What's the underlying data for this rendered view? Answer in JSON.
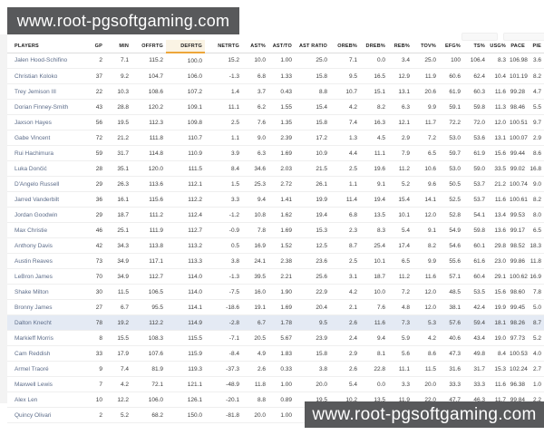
{
  "watermark": {
    "text": "www.root-pgsoftgaming.com"
  },
  "colors": {
    "banner_bg": "#58595b",
    "banner_text": "#ffffff",
    "sorted_header_bg": "#faf3e4",
    "sorted_header_underline": "#eda63a",
    "highlighted_row_bg": "#e4eaf4",
    "player_link": "#5d6d8a"
  },
  "table": {
    "columns": [
      "PLAYERS",
      "GP",
      "MIN",
      "OFFRTG",
      "DEFRTG",
      "NETRTG",
      "AST%",
      "AST/TO",
      "AST RATIO",
      "OREB%",
      "DREB%",
      "REB%",
      "TOV%",
      "EFG%",
      "TS%",
      "USG%",
      "PACE",
      "PIE"
    ],
    "sorted_column": "DEFRTG",
    "sorted_column_index": 4,
    "highlighted_player": "Dalton Knecht",
    "highlighted_row_index": 17,
    "rows": [
      {
        "player": "Jalen Hood-Schifino",
        "values": [
          "2",
          "7.1",
          "115.2",
          "100.0",
          "15.2",
          "10.0",
          "1.00",
          "25.0",
          "7.1",
          "0.0",
          "3.4",
          "25.0",
          "100",
          "106.4",
          "8.3",
          "106.98",
          "3.6"
        ]
      },
      {
        "player": "Christian Koloko",
        "values": [
          "37",
          "9.2",
          "104.7",
          "106.0",
          "-1.3",
          "6.8",
          "1.33",
          "15.8",
          "9.5",
          "16.5",
          "12.9",
          "11.9",
          "60.6",
          "62.4",
          "10.4",
          "101.19",
          "8.2"
        ]
      },
      {
        "player": "Trey Jemison III",
        "values": [
          "22",
          "10.3",
          "108.6",
          "107.2",
          "1.4",
          "3.7",
          "0.43",
          "8.8",
          "10.7",
          "15.1",
          "13.1",
          "20.6",
          "61.9",
          "60.3",
          "11.6",
          "99.28",
          "4.7"
        ]
      },
      {
        "player": "Dorian Finney-Smith",
        "values": [
          "43",
          "28.8",
          "120.2",
          "109.1",
          "11.1",
          "6.2",
          "1.55",
          "15.4",
          "4.2",
          "8.2",
          "6.3",
          "9.9",
          "59.1",
          "59.8",
          "11.3",
          "98.46",
          "5.5"
        ]
      },
      {
        "player": "Jaxson Hayes",
        "values": [
          "56",
          "19.5",
          "112.3",
          "109.8",
          "2.5",
          "7.6",
          "1.35",
          "15.8",
          "7.4",
          "16.3",
          "12.1",
          "11.7",
          "72.2",
          "72.0",
          "12.0",
          "100.51",
          "9.7"
        ]
      },
      {
        "player": "Gabe Vincent",
        "values": [
          "72",
          "21.2",
          "111.8",
          "110.7",
          "1.1",
          "9.0",
          "2.39",
          "17.2",
          "1.3",
          "4.5",
          "2.9",
          "7.2",
          "53.0",
          "53.6",
          "13.1",
          "100.07",
          "2.9"
        ]
      },
      {
        "player": "Rui Hachimura",
        "values": [
          "59",
          "31.7",
          "114.8",
          "110.9",
          "3.9",
          "6.3",
          "1.69",
          "10.9",
          "4.4",
          "11.1",
          "7.9",
          "6.5",
          "59.7",
          "61.9",
          "15.6",
          "99.44",
          "8.6"
        ]
      },
      {
        "player": "Luka Dončić",
        "values": [
          "28",
          "35.1",
          "120.0",
          "111.5",
          "8.4",
          "34.6",
          "2.03",
          "21.5",
          "2.5",
          "19.6",
          "11.2",
          "10.6",
          "53.0",
          "59.0",
          "33.5",
          "99.02",
          "16.8"
        ]
      },
      {
        "player": "D'Angelo Russell",
        "values": [
          "29",
          "26.3",
          "113.6",
          "112.1",
          "1.5",
          "25.3",
          "2.72",
          "26.1",
          "1.1",
          "9.1",
          "5.2",
          "9.6",
          "50.5",
          "53.7",
          "21.2",
          "100.74",
          "9.0"
        ]
      },
      {
        "player": "Jarred Vanderbilt",
        "values": [
          "36",
          "16.1",
          "115.6",
          "112.2",
          "3.3",
          "9.4",
          "1.41",
          "19.9",
          "11.4",
          "19.4",
          "15.4",
          "14.1",
          "52.5",
          "53.7",
          "11.6",
          "100.61",
          "8.2"
        ]
      },
      {
        "player": "Jordan Goodwin",
        "values": [
          "29",
          "18.7",
          "111.2",
          "112.4",
          "-1.2",
          "10.8",
          "1.62",
          "19.4",
          "6.8",
          "13.5",
          "10.1",
          "12.0",
          "52.8",
          "54.1",
          "13.4",
          "99.53",
          "8.0"
        ]
      },
      {
        "player": "Max Christie",
        "values": [
          "46",
          "25.1",
          "111.9",
          "112.7",
          "-0.9",
          "7.8",
          "1.69",
          "15.3",
          "2.3",
          "8.3",
          "5.4",
          "9.1",
          "54.9",
          "59.8",
          "13.6",
          "99.17",
          "6.5"
        ]
      },
      {
        "player": "Anthony Davis",
        "values": [
          "42",
          "34.3",
          "113.8",
          "113.2",
          "0.5",
          "16.9",
          "1.52",
          "12.5",
          "8.7",
          "25.4",
          "17.4",
          "8.2",
          "54.6",
          "60.1",
          "29.8",
          "98.52",
          "18.3"
        ]
      },
      {
        "player": "Austin Reaves",
        "values": [
          "73",
          "34.9",
          "117.1",
          "113.3",
          "3.8",
          "24.1",
          "2.38",
          "23.6",
          "2.5",
          "10.1",
          "6.5",
          "9.9",
          "55.6",
          "61.6",
          "23.0",
          "99.86",
          "11.8"
        ]
      },
      {
        "player": "LeBron James",
        "values": [
          "70",
          "34.9",
          "112.7",
          "114.0",
          "-1.3",
          "39.5",
          "2.21",
          "25.6",
          "3.1",
          "18.7",
          "11.2",
          "11.6",
          "57.1",
          "60.4",
          "29.1",
          "100.62",
          "16.9"
        ]
      },
      {
        "player": "Shake Milton",
        "values": [
          "30",
          "11.5",
          "106.5",
          "114.0",
          "-7.5",
          "16.0",
          "1.90",
          "22.9",
          "4.2",
          "10.0",
          "7.2",
          "12.0",
          "48.5",
          "53.5",
          "15.6",
          "98.60",
          "7.8"
        ]
      },
      {
        "player": "Bronny James",
        "values": [
          "27",
          "6.7",
          "95.5",
          "114.1",
          "-18.6",
          "19.1",
          "1.69",
          "20.4",
          "2.1",
          "7.6",
          "4.8",
          "12.0",
          "38.1",
          "42.4",
          "19.9",
          "99.45",
          "5.0"
        ]
      },
      {
        "player": "Dalton Knecht",
        "values": [
          "78",
          "19.2",
          "112.2",
          "114.9",
          "-2.8",
          "6.7",
          "1.78",
          "9.5",
          "2.6",
          "11.6",
          "7.3",
          "5.3",
          "57.6",
          "59.4",
          "18.1",
          "98.26",
          "8.7"
        ]
      },
      {
        "player": "Markieff Morris",
        "values": [
          "8",
          "15.5",
          "108.3",
          "115.5",
          "-7.1",
          "20.5",
          "5.67",
          "23.9",
          "2.4",
          "9.4",
          "5.9",
          "4.2",
          "40.6",
          "43.4",
          "19.0",
          "97.73",
          "5.2"
        ]
      },
      {
        "player": "Cam Reddish",
        "values": [
          "33",
          "17.9",
          "107.6",
          "115.9",
          "-8.4",
          "4.9",
          "1.83",
          "15.8",
          "2.9",
          "8.1",
          "5.6",
          "8.6",
          "47.3",
          "49.8",
          "8.4",
          "100.53",
          "4.0"
        ]
      },
      {
        "player": "Armel Traoré",
        "values": [
          "9",
          "7.4",
          "81.9",
          "119.3",
          "-37.3",
          "2.6",
          "0.33",
          "3.8",
          "2.6",
          "22.8",
          "11.1",
          "11.5",
          "31.6",
          "31.7",
          "15.3",
          "102.24",
          "2.7"
        ]
      },
      {
        "player": "Maxwell Lewis",
        "values": [
          "7",
          "4.2",
          "72.1",
          "121.1",
          "-48.9",
          "11.8",
          "1.00",
          "20.0",
          "5.4",
          "0.0",
          "3.3",
          "20.0",
          "33.3",
          "33.3",
          "11.6",
          "96.38",
          "1.0"
        ]
      },
      {
        "player": "Alex Len",
        "values": [
          "10",
          "12.2",
          "106.0",
          "126.1",
          "-20.1",
          "8.8",
          "0.89",
          "19.5",
          "10.2",
          "13.5",
          "11.9",
          "22.0",
          "47.7",
          "46.3",
          "11.7",
          "99.84",
          "2.2"
        ]
      },
      {
        "player": "Quincy Olivari",
        "values": [
          "2",
          "5.2",
          "68.2",
          "150.0",
          "-81.8",
          "20.0",
          "1.00",
          "14.3",
          "0.0",
          "0.0",
          "0.0",
          "14.3",
          "30.0",
          "30.0",
          "23.1",
          "102.52",
          "-2.2"
        ]
      }
    ]
  }
}
